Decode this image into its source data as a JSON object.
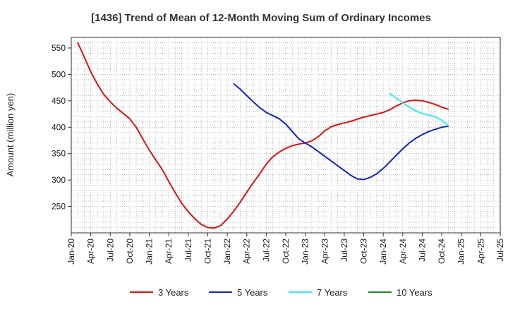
{
  "chart_data": {
    "type": "line",
    "title": "[1436]  Trend of Mean of 12-Month Moving Sum of Ordinary Incomes",
    "xlabel": "",
    "ylabel": "Amount (million yen)",
    "x_ticks": [
      "Jan-20",
      "Apr-20",
      "Jul-20",
      "Oct-20",
      "Jan-21",
      "Apr-21",
      "Jul-21",
      "Oct-21",
      "Jan-22",
      "Apr-22",
      "Jul-22",
      "Oct-22",
      "Jan-23",
      "Apr-23",
      "Jul-23",
      "Oct-23",
      "Jan-24",
      "Apr-24",
      "Jul-24",
      "Oct-24",
      "Jan-25",
      "Apr-25",
      "Jul-25"
    ],
    "y_ticks": [
      250,
      300,
      350,
      400,
      450,
      500,
      550
    ],
    "ylim": [
      200,
      570
    ],
    "xlim_months": [
      0,
      66
    ],
    "grid": true,
    "legend_position": "bottom",
    "series": [
      {
        "name": "3 Years",
        "color": "#dd1111",
        "points": [
          [
            1,
            560
          ],
          [
            2,
            533
          ],
          [
            3,
            505
          ],
          [
            4,
            482
          ],
          [
            5,
            462
          ],
          [
            6,
            448
          ],
          [
            7,
            436
          ],
          [
            8,
            426
          ],
          [
            9,
            416
          ],
          [
            10,
            400
          ],
          [
            11,
            378
          ],
          [
            12,
            357
          ],
          [
            13,
            338
          ],
          [
            14,
            320
          ],
          [
            15,
            297
          ],
          [
            16,
            276
          ],
          [
            17,
            256
          ],
          [
            18,
            240
          ],
          [
            19,
            227
          ],
          [
            20,
            216
          ],
          [
            21,
            210
          ],
          [
            22,
            209
          ],
          [
            23,
            214
          ],
          [
            24,
            226
          ],
          [
            25,
            241
          ],
          [
            26,
            258
          ],
          [
            27,
            277
          ],
          [
            28,
            295
          ],
          [
            29,
            312
          ],
          [
            30,
            330
          ],
          [
            31,
            344
          ],
          [
            32,
            353
          ],
          [
            33,
            360
          ],
          [
            34,
            365
          ],
          [
            35,
            368
          ],
          [
            36,
            370
          ],
          [
            37,
            374
          ],
          [
            38,
            382
          ],
          [
            39,
            393
          ],
          [
            40,
            401
          ],
          [
            41,
            405
          ],
          [
            42,
            408
          ],
          [
            43,
            411
          ],
          [
            44,
            415
          ],
          [
            45,
            419
          ],
          [
            46,
            422
          ],
          [
            47,
            425
          ],
          [
            48,
            428
          ],
          [
            49,
            433
          ],
          [
            50,
            440
          ],
          [
            51,
            446
          ],
          [
            52,
            450
          ],
          [
            53,
            451
          ],
          [
            54,
            450
          ],
          [
            55,
            447
          ],
          [
            56,
            443
          ],
          [
            57,
            438
          ],
          [
            58,
            434
          ]
        ]
      },
      {
        "name": "5 Years",
        "color": "#1122cc",
        "points": [
          [
            25,
            482
          ],
          [
            26,
            472
          ],
          [
            27,
            460
          ],
          [
            28,
            448
          ],
          [
            29,
            437
          ],
          [
            30,
            428
          ],
          [
            31,
            422
          ],
          [
            32,
            416
          ],
          [
            33,
            406
          ],
          [
            34,
            392
          ],
          [
            35,
            378
          ],
          [
            36,
            370
          ],
          [
            37,
            363
          ],
          [
            38,
            354
          ],
          [
            39,
            345
          ],
          [
            40,
            336
          ],
          [
            41,
            327
          ],
          [
            42,
            318
          ],
          [
            43,
            309
          ],
          [
            44,
            302
          ],
          [
            45,
            301
          ],
          [
            46,
            305
          ],
          [
            47,
            312
          ],
          [
            48,
            322
          ],
          [
            49,
            334
          ],
          [
            50,
            347
          ],
          [
            51,
            359
          ],
          [
            52,
            370
          ],
          [
            53,
            379
          ],
          [
            54,
            386
          ],
          [
            55,
            392
          ],
          [
            56,
            396
          ],
          [
            57,
            400
          ],
          [
            58,
            402
          ]
        ]
      },
      {
        "name": "7 Years",
        "color": "#33eeee",
        "points": [
          [
            49,
            464
          ],
          [
            50,
            455
          ],
          [
            51,
            446
          ],
          [
            52,
            438
          ],
          [
            53,
            431
          ],
          [
            54,
            426
          ],
          [
            55,
            423
          ],
          [
            56,
            420
          ],
          [
            57,
            413
          ],
          [
            58,
            403
          ]
        ]
      },
      {
        "name": "10 Years",
        "color": "#228822",
        "points": []
      }
    ]
  }
}
